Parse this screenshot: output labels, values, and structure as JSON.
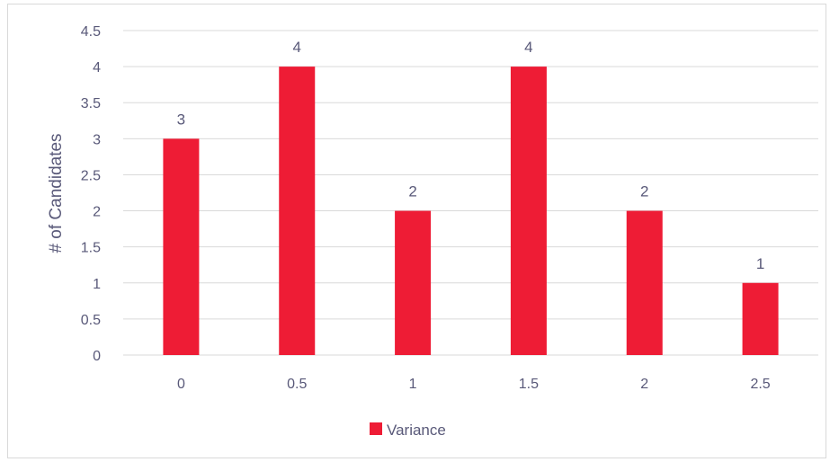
{
  "chart_data": {
    "type": "bar",
    "categories": [
      "0",
      "0.5",
      "1",
      "1.5",
      "2",
      "2.5"
    ],
    "series": [
      {
        "name": "Variance",
        "values": [
          3,
          4,
          2,
          4,
          2,
          1
        ],
        "color": "#ee1c35"
      }
    ],
    "ylabel": "# of Candidates",
    "xlabel": "",
    "title": "",
    "ylim": [
      0,
      4.5
    ],
    "yticks": [
      "0",
      "0.5",
      "1",
      "1.5",
      "2",
      "2.5",
      "3",
      "3.5",
      "4",
      "4.5"
    ],
    "data_labels": [
      "3",
      "4",
      "2",
      "4",
      "2",
      "1"
    ],
    "grid": "horizontal",
    "legend_position": "bottom",
    "colors": {
      "gridline": "#d9d9d9",
      "text": "#595979",
      "bar": "#ee1c35"
    }
  }
}
